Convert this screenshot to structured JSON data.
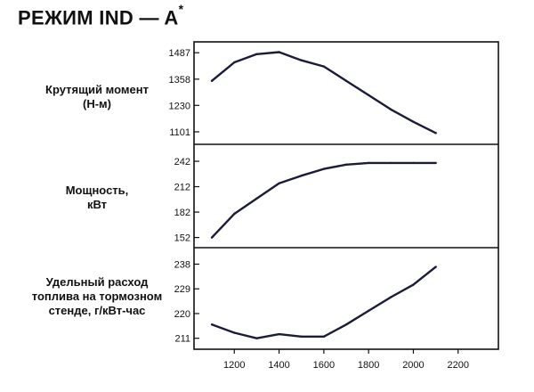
{
  "title": {
    "main": "РЕЖИМ IND — A",
    "mark": "*"
  },
  "x_ticks": [
    "1200",
    "1400",
    "1600",
    "1800",
    "2000",
    "2200"
  ],
  "chart_data": [
    {
      "type": "line",
      "ylabel_lines": [
        "Крутящий момент",
        "(Н-м)"
      ],
      "yticks": [
        "1487",
        "1358",
        "1230",
        "1101"
      ],
      "ylim": [
        1040,
        1540
      ],
      "xlim": [
        1020,
        2380
      ],
      "x": [
        1100,
        1200,
        1300,
        1400,
        1500,
        1600,
        1700,
        1800,
        1900,
        2000,
        2100
      ],
      "values": [
        1350,
        1440,
        1480,
        1490,
        1450,
        1420,
        1350,
        1280,
        1210,
        1150,
        1095
      ]
    },
    {
      "type": "line",
      "ylabel_lines": [
        "Мощность,",
        "кВт"
      ],
      "yticks": [
        "242",
        "212",
        "182",
        "152"
      ],
      "ylim": [
        140,
        262
      ],
      "xlim": [
        1020,
        2380
      ],
      "x": [
        1100,
        1200,
        1300,
        1400,
        1500,
        1600,
        1700,
        1800,
        1900,
        2000,
        2100
      ],
      "values": [
        152,
        180,
        198,
        216,
        225,
        233,
        238,
        240,
        240,
        240,
        240
      ]
    },
    {
      "type": "line",
      "ylabel_lines": [
        "Удельный расход",
        "топлива на тормозном",
        "стенде, г/кВт-час"
      ],
      "yticks": [
        "238",
        "229",
        "220",
        "211"
      ],
      "ylim": [
        207,
        244
      ],
      "xlim": [
        1020,
        2380
      ],
      "x": [
        1100,
        1200,
        1300,
        1400,
        1500,
        1600,
        1700,
        1800,
        1900,
        2000,
        2100
      ],
      "values": [
        216,
        213,
        211,
        212.5,
        211.6,
        211.6,
        216,
        221,
        226,
        230.5,
        237
      ]
    }
  ]
}
